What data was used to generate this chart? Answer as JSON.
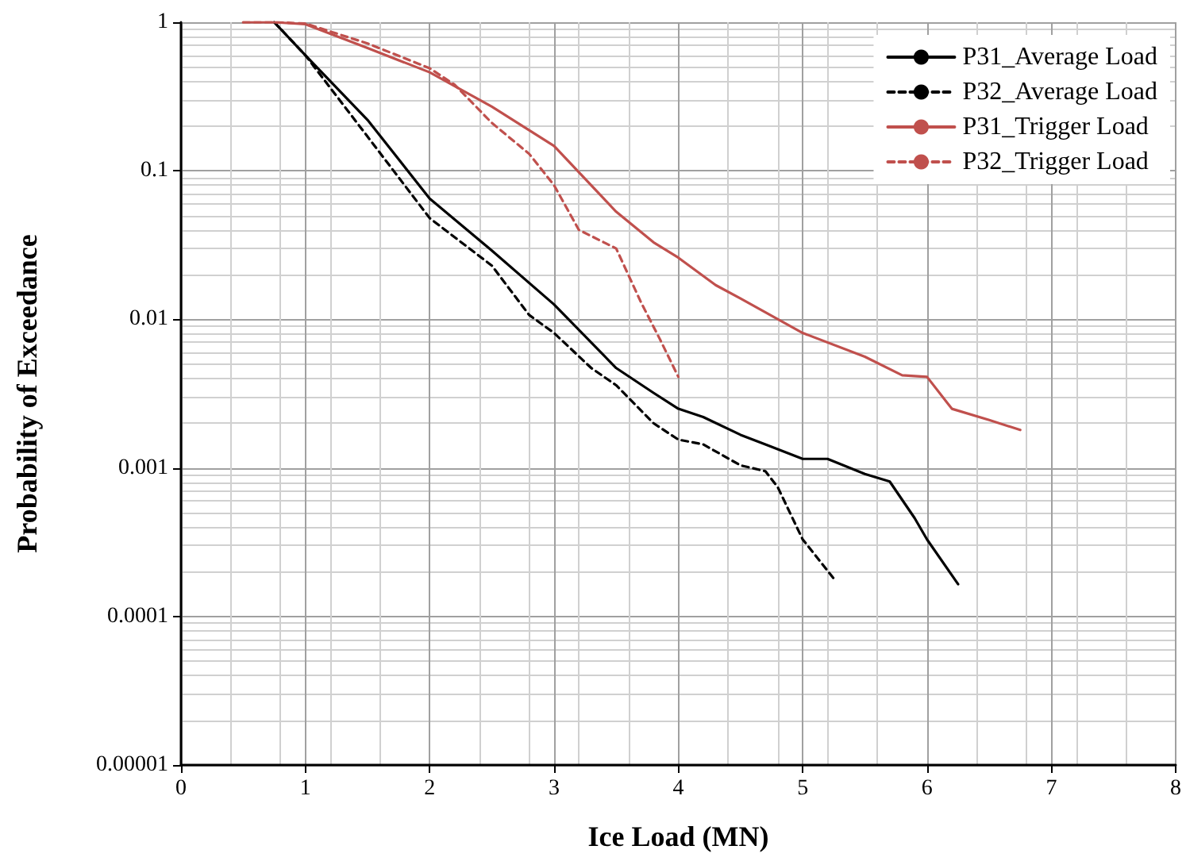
{
  "chart_data": {
    "type": "line",
    "xlabel": "Ice Load (MN)",
    "ylabel": "Probability of Exceedance",
    "log": "y",
    "grid": true,
    "legend": "top right",
    "marker": "none",
    "xlim": [
      0,
      8
    ],
    "xticks": [
      0,
      1,
      2,
      3,
      4,
      5,
      6,
      7,
      8
    ],
    "ylim": [
      1e-05,
      1
    ],
    "yticks": [
      {
        "value": 1e-05,
        "label": "0.00001"
      },
      0.0001,
      0.001,
      0.01,
      0.1,
      1
    ],
    "series": [
      {
        "name": "P31_Average Load",
        "color": "#000000",
        "line_style": "solid",
        "x": [
          0.75,
          1,
          1.5,
          2,
          2.5,
          3,
          3.5,
          3.8,
          4,
          4.2,
          4.5,
          4.7,
          5,
          5.2,
          5.5,
          5.7,
          5.9,
          6,
          6.25
        ],
        "values": [
          1,
          0.6,
          0.22,
          0.065,
          0.029,
          0.0126,
          0.0047,
          0.0032,
          0.0025,
          0.0022,
          0.00167,
          0.00144,
          0.00115,
          0.00115,
          0.00091,
          0.00081,
          0.00046,
          0.00033,
          0.000165
        ]
      },
      {
        "name": "P32_Average Load",
        "color": "#000000",
        "line_style": "dashed",
        "x": [
          0.75,
          1,
          1.5,
          2,
          2.5,
          2.8,
          3,
          3.3,
          3.5,
          3.8,
          4,
          4.2,
          4.5,
          4.7,
          4.8,
          5,
          5.25
        ],
        "values": [
          1,
          0.6,
          0.17,
          0.048,
          0.023,
          0.0107,
          0.0081,
          0.0047,
          0.0036,
          0.002,
          0.00155,
          0.00144,
          0.00104,
          0.00095,
          0.00074,
          0.00033,
          0.00018
        ]
      },
      {
        "name": "P31_Trigger Load",
        "color": "#c0504d",
        "line_style": "solid",
        "x": [
          0.5,
          0.75,
          1,
          1.5,
          2,
          2.5,
          3,
          3.5,
          3.8,
          4,
          4.3,
          4.5,
          5,
          5.5,
          5.8,
          6,
          6.2,
          6.5,
          6.75
        ],
        "values": [
          1,
          1,
          0.97,
          0.67,
          0.46,
          0.27,
          0.147,
          0.053,
          0.033,
          0.026,
          0.017,
          0.0138,
          0.0081,
          0.0056,
          0.0042,
          0.0041,
          0.0025,
          0.0021,
          0.0018
        ]
      },
      {
        "name": "P32_Trigger Load",
        "color": "#c0504d",
        "line_style": "dashed",
        "x": [
          0.5,
          0.75,
          1,
          1.5,
          2,
          2.2,
          2.5,
          2.8,
          3,
          3.2,
          3.4,
          3.5,
          3.7,
          3.85,
          4
        ],
        "values": [
          1,
          1,
          0.98,
          0.72,
          0.49,
          0.38,
          0.21,
          0.13,
          0.08,
          0.04,
          0.033,
          0.03,
          0.013,
          0.0074,
          0.0041
        ]
      }
    ]
  }
}
